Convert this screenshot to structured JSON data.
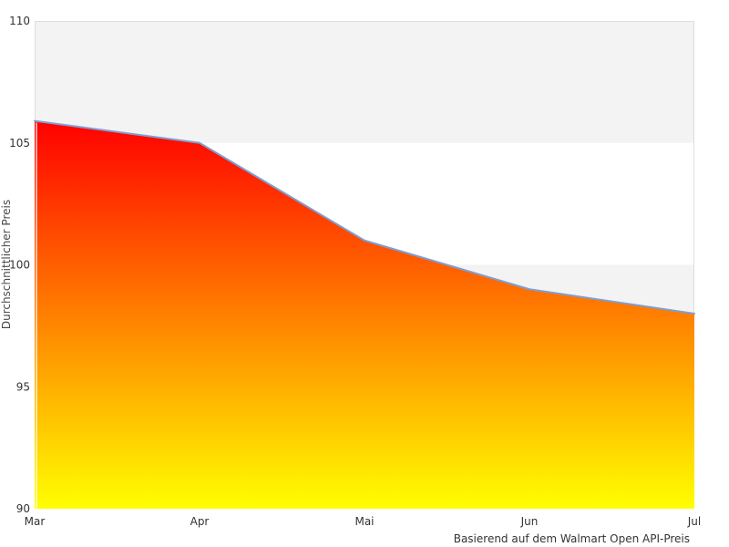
{
  "chart_data": {
    "type": "area",
    "categories": [
      "Mar",
      "Apr",
      "Mai",
      "Jun",
      "Jul"
    ],
    "values": [
      105.9,
      105.0,
      101.0,
      99.0,
      98.0
    ],
    "title": "",
    "xlabel": "",
    "ylabel": "Durchschnittlicher Preis",
    "caption": "Basierend auf dem Walmart Open API-Preis",
    "ylim": [
      90,
      110
    ],
    "yticks": [
      90,
      95,
      100,
      105,
      110
    ],
    "grid": "alternating-horizontal-bands",
    "legend": "none",
    "colors": {
      "area_gradient_top": "#ff0000",
      "area_gradient_bottom": "#ffff00",
      "line": "#7f9ed2",
      "band": "#f3f3f3",
      "border": "#dedede",
      "first_gridline": "#ffffff",
      "tick_text": "#333333"
    }
  }
}
